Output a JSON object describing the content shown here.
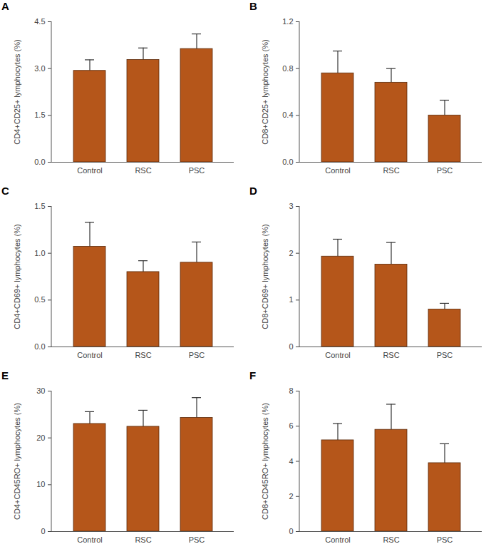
{
  "chart_data": [
    {
      "type": "bar",
      "panel": "A",
      "y_label": "CD4+CD25+ lymphocytes (%)",
      "categories": [
        "Control",
        "RSC",
        "PSC"
      ],
      "values": [
        2.93,
        3.28,
        3.63
      ],
      "errors": [
        0.35,
        0.38,
        0.48
      ],
      "color": "#b5561a",
      "ylim": [
        0,
        4.5
      ],
      "yticks": [
        {
          "value": 0,
          "label": "0.0"
        },
        1.5,
        {
          "value": 3,
          "label": "3.0"
        },
        4.5
      ]
    },
    {
      "type": "bar",
      "panel": "B",
      "y_label": "CD8+CD25+ lymphocytes (%)",
      "categories": [
        "Control",
        "RSC",
        "PSC"
      ],
      "values": [
        0.76,
        0.68,
        0.4
      ],
      "errors": [
        0.19,
        0.12,
        0.13
      ],
      "color": "#b5561a",
      "ylim": [
        0,
        1.2
      ],
      "yticks": [
        {
          "value": 0,
          "label": "0.0"
        },
        0.4,
        0.8,
        1.2
      ]
    },
    {
      "type": "bar",
      "panel": "C",
      "y_label": "CD4+CD69+ lymphocytes (%)",
      "categories": [
        "Control",
        "RSC",
        "PSC"
      ],
      "values": [
        1.07,
        0.8,
        0.9
      ],
      "errors": [
        0.26,
        0.12,
        0.22
      ],
      "color": "#b5561a",
      "ylim": [
        0,
        1.5
      ],
      "yticks": [
        {
          "value": 0,
          "label": "0.0"
        },
        0.5,
        {
          "value": 1,
          "label": "1.0"
        },
        1.5
      ]
    },
    {
      "type": "bar",
      "panel": "D",
      "y_label": "CD8+CD69+ lymphocytes (%)",
      "categories": [
        "Control",
        "RSC",
        "PSC"
      ],
      "values": [
        1.93,
        1.76,
        0.8
      ],
      "errors": [
        0.37,
        0.47,
        0.13
      ],
      "color": "#b5561a",
      "ylim": [
        0,
        3
      ],
      "yticks": [
        0,
        1,
        2,
        3
      ]
    },
    {
      "type": "bar",
      "panel": "E",
      "y_label": "CD4+CD45RO+ lymphocytes (%)",
      "categories": [
        "Control",
        "RSC",
        "PSC"
      ],
      "values": [
        23.0,
        22.4,
        24.3
      ],
      "errors": [
        2.6,
        3.5,
        4.3
      ],
      "color": "#b5561a",
      "ylim": [
        0,
        30
      ],
      "yticks": [
        0,
        10,
        20,
        30
      ]
    },
    {
      "type": "bar",
      "panel": "F",
      "y_label": "CD8+CD45RO+ lymphocytes (%)",
      "categories": [
        "Control",
        "RSC",
        "PSC"
      ],
      "values": [
        5.2,
        5.8,
        3.9
      ],
      "errors": [
        0.95,
        1.45,
        1.1
      ],
      "color": "#b5561a",
      "ylim": [
        0,
        8
      ],
      "yticks": [
        0,
        2,
        4,
        6,
        8
      ]
    }
  ]
}
